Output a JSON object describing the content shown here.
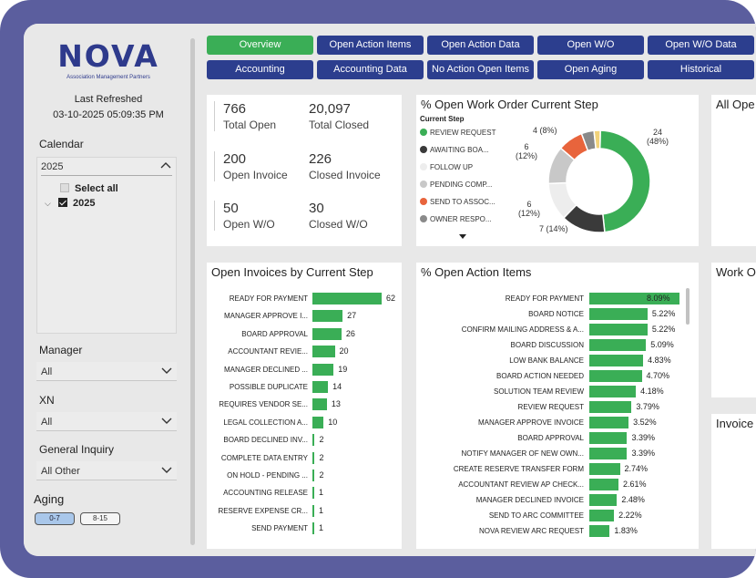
{
  "brand": {
    "logo": "NOVA",
    "tagline": "Association Management Partners"
  },
  "refresh": {
    "label": "Last Refreshed",
    "value": "03-10-2025 05:09:35 PM"
  },
  "filters": {
    "calendar": {
      "label": "Calendar",
      "header": "2025",
      "select_all": "Select all",
      "year": "2025"
    },
    "manager": {
      "label": "Manager",
      "value": "All"
    },
    "xn": {
      "label": "XN",
      "value": "All"
    },
    "general_inquiry": {
      "label": "General Inquiry",
      "value": "All Other"
    },
    "aging": {
      "label": "Aging",
      "options": [
        "0-7",
        "8-15"
      ],
      "selected": "0-7"
    }
  },
  "nav": {
    "row1": [
      "Overview",
      "Open Action Items",
      "Open Action Data",
      "Open W/O",
      "Open W/O Data"
    ],
    "row2": [
      "Accounting",
      "Accounting Data",
      "No Action Open Items",
      "Open Aging",
      "Historical"
    ],
    "active": "Overview"
  },
  "kpis": [
    {
      "value": "766",
      "label": "Total Open"
    },
    {
      "value": "20,097",
      "label": "Total Closed"
    },
    {
      "value": "200",
      "label": "Open Invoice"
    },
    {
      "value": "226",
      "label": "Closed Invoice"
    },
    {
      "value": "50",
      "label": "Open W/O"
    },
    {
      "value": "30",
      "label": "Closed W/O"
    }
  ],
  "work_order_panel": {
    "title": "% Open Work Order Current Step",
    "legend_title": "Current Step",
    "legend": [
      {
        "label": "REVIEW REQUEST",
        "color": "#3aae56"
      },
      {
        "label": "AWAITING BOA...",
        "color": "#3a3a3a"
      },
      {
        "label": "FOLLOW UP",
        "color": "#ededed"
      },
      {
        "label": "PENDING COMP...",
        "color": "#c8c8c8"
      },
      {
        "label": "SEND TO ASSOC...",
        "color": "#e8643c"
      },
      {
        "label": "OWNER RESPO...",
        "color": "#8a8a8a"
      }
    ],
    "donut_labels": {
      "review": {
        "count": "24",
        "pct": "(48%)"
      },
      "awaiting": {
        "text": "7 (14%)"
      },
      "follow": {
        "count": "6",
        "pct": "(12%)"
      },
      "pending": {
        "count": "6",
        "pct": "(12%)"
      },
      "send": {
        "text": "4 (8%)"
      }
    }
  },
  "side_titles": {
    "top": "All Ope",
    "middle": "Work O",
    "bottom": "Invoice"
  },
  "chart_data": [
    {
      "type": "pie",
      "title": "% Open Work Order Current Step",
      "legend_title": "Current Step",
      "slices": [
        {
          "name": "REVIEW REQUEST",
          "value": 24,
          "percent": 48,
          "color": "#3aae56"
        },
        {
          "name": "AWAITING BOA...",
          "value": 7,
          "percent": 14,
          "color": "#3a3a3a"
        },
        {
          "name": "FOLLOW UP",
          "value": 6,
          "percent": 12,
          "color": "#ededed"
        },
        {
          "name": "PENDING COMP...",
          "value": 6,
          "percent": 12,
          "color": "#c8c8c8"
        },
        {
          "name": "SEND TO ASSOC...",
          "value": 4,
          "percent": 8,
          "color": "#e8643c"
        },
        {
          "name": "OWNER RESPO...",
          "value": 2,
          "percent": 4,
          "color": "#8a8a8a"
        },
        {
          "name": "",
          "value": 1,
          "percent": 2,
          "color": "#f1d27a"
        }
      ]
    },
    {
      "type": "bar",
      "title": "Open Invoices by Current Step",
      "orientation": "horizontal",
      "categories": [
        "READY FOR PAYMENT",
        "MANAGER APPROVE I...",
        "BOARD APPROVAL",
        "ACCOUNTANT REVIE...",
        "MANAGER DECLINED ...",
        "POSSIBLE DUPLICATE",
        "REQUIRES VENDOR SE...",
        "LEGAL COLLECTION A...",
        "BOARD DECLINED INV...",
        "COMPLETE DATA ENTRY",
        "ON HOLD - PENDING ...",
        "ACCOUNTING RELEASE",
        "RESERVE EXPENSE CR...",
        "SEND PAYMENT"
      ],
      "values": [
        62,
        27,
        26,
        20,
        19,
        14,
        13,
        10,
        2,
        2,
        2,
        1,
        1,
        1
      ],
      "labels": [
        "62",
        "27",
        "26",
        "20",
        "19",
        "14",
        "13",
        "10",
        "2",
        "2",
        "2",
        "1",
        "1",
        "1"
      ],
      "xmax": 62
    },
    {
      "type": "bar",
      "title": "% Open Action Items",
      "orientation": "horizontal",
      "categories": [
        "READY FOR PAYMENT",
        "BOARD NOTICE",
        "CONFIRM MAILING ADDRESS & A...",
        "BOARD DISCUSSION",
        "LOW BANK BALANCE",
        "BOARD ACTION NEEDED",
        "SOLUTION TEAM REVIEW",
        "REVIEW REQUEST",
        "MANAGER APPROVE INVOICE",
        "BOARD APPROVAL",
        "NOTIFY MANAGER OF NEW OWN...",
        "CREATE RESERVE TRANSFER FORM",
        "ACCOUNTANT REVIEW AP CHECK...",
        "MANAGER DECLINED INVOICE",
        "SEND TO ARC COMMITTEE",
        "NOVA REVIEW ARC REQUEST"
      ],
      "values": [
        8.09,
        5.22,
        5.22,
        5.09,
        4.83,
        4.7,
        4.18,
        3.79,
        3.52,
        3.39,
        3.39,
        2.74,
        2.61,
        2.48,
        2.22,
        1.83
      ],
      "labels": [
        "8.09%",
        "5.22%",
        "5.22%",
        "5.09%",
        "4.83%",
        "4.70%",
        "4.18%",
        "3.79%",
        "3.52%",
        "3.39%",
        "3.39%",
        "2.74%",
        "2.61%",
        "2.48%",
        "2.22%",
        "1.83%"
      ],
      "xmax": 8.09
    }
  ]
}
